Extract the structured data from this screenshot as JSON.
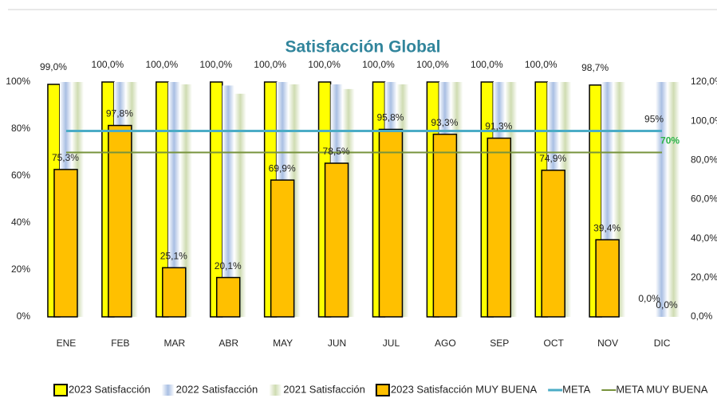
{
  "chart_data": {
    "type": "bar",
    "title": "Satisfacción Global",
    "categories": [
      "ENE",
      "FEB",
      "MAR",
      "ABR",
      "MAY",
      "JUN",
      "JUL",
      "AGO",
      "SEP",
      "OCT",
      "NOV",
      "DIC"
    ],
    "ylim": [
      0,
      100
    ],
    "yticks": [
      {
        "value": 0,
        "label": "0%"
      },
      {
        "value": 20,
        "label": "20%"
      },
      {
        "value": 40,
        "label": "40%"
      },
      {
        "value": 60,
        "label": "60%"
      },
      {
        "value": 80,
        "label": "80%"
      },
      {
        "value": 100,
        "label": "100%"
      }
    ],
    "y2lim": [
      0,
      120
    ],
    "y2ticks": [
      {
        "value": 0,
        "label": "0,0%"
      },
      {
        "value": 20,
        "label": "20,0%"
      },
      {
        "value": 40,
        "label": "40,0%"
      },
      {
        "value": 60,
        "label": "60,0%"
      },
      {
        "value": 80,
        "label": "80,0%"
      },
      {
        "value": 100,
        "label": "100,0%"
      },
      {
        "value": 120,
        "label": "120,0%"
      }
    ],
    "legend": "bottom",
    "series": [
      {
        "name": "2023 Satisfacción",
        "kind": "bar",
        "color": "#ffff00",
        "axis": "y",
        "values": [
          99.0,
          100,
          100,
          100,
          100,
          100,
          100,
          100,
          100,
          100,
          98.7,
          0
        ],
        "value_labels": [
          "99,0%",
          "100,0%",
          "100,0%",
          "100,0%",
          "100,0%",
          "100,0%",
          "100,0%",
          "100,0%",
          "100,0%",
          "100,0%",
          "98,7%",
          "0,0%"
        ]
      },
      {
        "name": "2022 Satisfacción",
        "kind": "bar",
        "color": "#a9bfe3",
        "axis": "y",
        "values": [
          100,
          100,
          100,
          98.5,
          100,
          99,
          100,
          100,
          100,
          100,
          100,
          100
        ]
      },
      {
        "name": "2021 Satisfacción",
        "kind": "bar",
        "color": "#cfdcb2",
        "axis": "y",
        "values": [
          100,
          100,
          99,
          95,
          99,
          97,
          99,
          100,
          100,
          100,
          100,
          100
        ]
      },
      {
        "name": "2023 Satisfacción MUY BUENA",
        "kind": "bar",
        "color": "#ffc000",
        "axis": "y2",
        "values": [
          75.3,
          97.8,
          25.1,
          20.1,
          69.9,
          78.5,
          95.8,
          93.3,
          91.3,
          74.9,
          39.4,
          0.0
        ],
        "value_labels": [
          "75,3%",
          "97,8%",
          "25,1%",
          "20,1%",
          "69,9%",
          "78,5%",
          "95,8%",
          "93,3%",
          "91,3%",
          "74,9%",
          "39,4%",
          "0,0%"
        ]
      },
      {
        "name": "META",
        "kind": "line",
        "color": "#4bacc6",
        "axis": "y2",
        "values": [
          95,
          95,
          95,
          95,
          95,
          95,
          95,
          95,
          95,
          95,
          95,
          95
        ],
        "end_label": "95%"
      },
      {
        "name": "META MUY BUENA",
        "kind": "line",
        "color": "#77933c",
        "axis": "y",
        "values": [
          70,
          70,
          70,
          70,
          70,
          70,
          70,
          70,
          70,
          70,
          70,
          70
        ],
        "end_label": "70%"
      }
    ]
  }
}
